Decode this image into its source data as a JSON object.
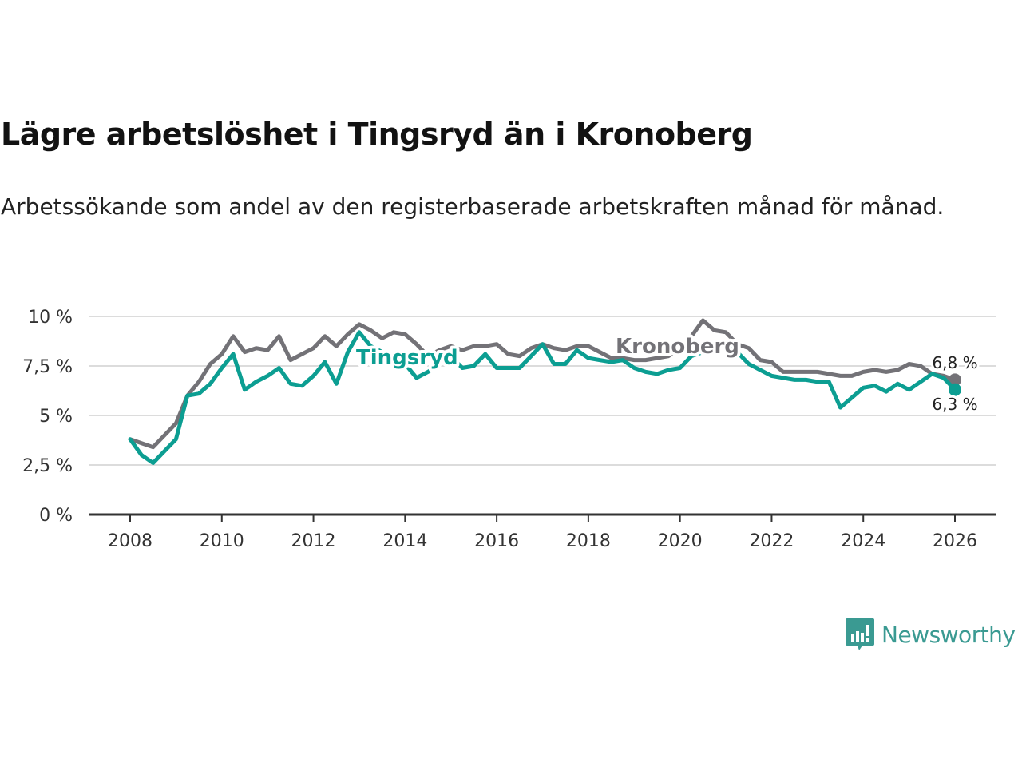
{
  "header": {
    "title": "Lägre arbetslöshet i Tingsryd än i Kronoberg",
    "subtitle": "Arbetssökande som andel av den registerbaserade arbetskraften månad för månad."
  },
  "branding": {
    "logo_text": "Newsworthy",
    "logo_icon": "bar-chart-speech-bubble-icon",
    "color": "#3a9a92"
  },
  "chart_data": {
    "type": "line",
    "title": "Lägre arbetslöshet i Tingsryd än i Kronoberg",
    "subtitle": "Arbetssökande som andel av den registerbaserade arbetskraften månad för månad.",
    "xlabel": "",
    "ylabel": "",
    "xlim": [
      2007.25,
      2027.5
    ],
    "ylim": [
      0,
      10
    ],
    "grid": true,
    "legend": "inline labels",
    "x_ticks": [
      2008,
      2010,
      2012,
      2014,
      2016,
      2018,
      2020,
      2022,
      2024,
      2026
    ],
    "x_tick_labels": [
      "2008",
      "2010",
      "2012",
      "2014",
      "2016",
      "2018",
      "2020",
      "2022",
      "2024",
      "2026"
    ],
    "y_ticks": [
      0,
      2.5,
      5,
      7.5,
      10
    ],
    "y_tick_labels": [
      "0 %",
      "2,5 %",
      "5 %",
      "7,5 %",
      "10 %"
    ],
    "x": [
      2008.0,
      2008.25,
      2008.5,
      2008.75,
      2009.0,
      2009.25,
      2009.5,
      2009.75,
      2010.0,
      2010.25,
      2010.5,
      2010.75,
      2011.0,
      2011.25,
      2011.5,
      2011.75,
      2012.0,
      2012.25,
      2012.5,
      2012.75,
      2013.0,
      2013.25,
      2013.5,
      2013.75,
      2014.0,
      2014.25,
      2014.5,
      2014.75,
      2015.0,
      2015.25,
      2015.5,
      2015.75,
      2016.0,
      2016.25,
      2016.5,
      2016.75,
      2017.0,
      2017.25,
      2017.5,
      2017.75,
      2018.0,
      2018.25,
      2018.5,
      2018.75,
      2019.0,
      2019.25,
      2019.5,
      2019.75,
      2020.0,
      2020.25,
      2020.5,
      2020.75,
      2021.0,
      2021.25,
      2021.5,
      2021.75,
      2022.0,
      2022.25,
      2022.5,
      2022.75,
      2023.0,
      2023.25,
      2023.5,
      2023.75,
      2024.0,
      2024.25,
      2024.5,
      2024.75,
      2025.0,
      2025.25,
      2025.5,
      2025.75,
      2026.0
    ],
    "series": [
      {
        "name": "Kronoberg",
        "color": "#737277",
        "end_label": "6,8 %",
        "values": [
          3.8,
          3.6,
          3.4,
          4.0,
          4.6,
          6.0,
          6.7,
          7.6,
          8.1,
          9.0,
          8.2,
          8.4,
          8.3,
          9.0,
          7.8,
          8.1,
          8.4,
          9.0,
          8.5,
          9.1,
          9.6,
          9.3,
          8.9,
          9.2,
          9.1,
          8.6,
          8.0,
          8.3,
          8.5,
          8.3,
          8.5,
          8.5,
          8.6,
          8.1,
          8.0,
          8.4,
          8.6,
          8.4,
          8.3,
          8.5,
          8.5,
          8.2,
          7.9,
          7.9,
          7.8,
          7.8,
          7.9,
          8.0,
          8.4,
          9.0,
          9.8,
          9.3,
          9.2,
          8.6,
          8.4,
          7.8,
          7.7,
          7.2,
          7.2,
          7.2,
          7.2,
          7.1,
          7.0,
          7.0,
          7.2,
          7.3,
          7.2,
          7.3,
          7.6,
          7.5,
          7.1,
          7.0,
          6.8
        ]
      },
      {
        "name": "Tingsryd",
        "color": "#0c9e92",
        "end_label": "6,3 %",
        "values": [
          3.8,
          3.0,
          2.6,
          3.2,
          3.8,
          6.0,
          6.1,
          6.6,
          7.4,
          8.1,
          6.3,
          6.7,
          7.0,
          7.4,
          6.6,
          6.5,
          7.0,
          7.7,
          6.6,
          8.2,
          9.2,
          8.5,
          8.2,
          7.9,
          7.6,
          6.9,
          7.2,
          7.6,
          8.0,
          7.4,
          7.5,
          8.1,
          7.4,
          7.4,
          7.4,
          8.0,
          8.6,
          7.6,
          7.6,
          8.3,
          7.9,
          7.8,
          7.7,
          7.8,
          7.4,
          7.2,
          7.1,
          7.3,
          7.4,
          8.0,
          8.2,
          8.4,
          8.5,
          8.2,
          7.6,
          7.3,
          7.0,
          6.9,
          6.8,
          6.8,
          6.7,
          6.7,
          5.4,
          5.9,
          6.4,
          6.5,
          6.2,
          6.6,
          6.3,
          6.7,
          7.1,
          6.9,
          6.3
        ]
      }
    ],
    "annotations": [
      {
        "text": "Tingsryd",
        "series": "Tingsryd",
        "x": 2014.3
      },
      {
        "text": "Kronoberg",
        "series": "Kronoberg",
        "x": 2020.3
      },
      {
        "text": "6,8 %",
        "series": "Kronoberg",
        "x": 2026.0
      },
      {
        "text": "6,3 %",
        "series": "Tingsryd",
        "x": 2026.0
      }
    ]
  }
}
